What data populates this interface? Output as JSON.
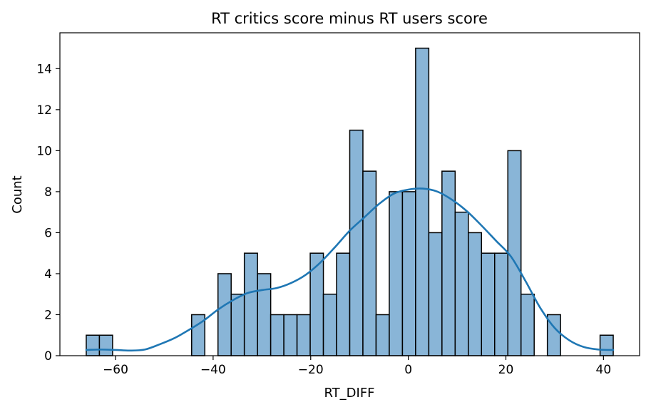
{
  "chart_data": {
    "type": "bar",
    "title": "RT critics score minus RT users score",
    "xlabel": "RT_DIFF",
    "ylabel": "Count",
    "xlim": [
      -71.4,
      47.4
    ],
    "ylim": [
      0,
      15.75
    ],
    "x_ticks": [
      -60,
      -40,
      -20,
      0,
      20,
      40
    ],
    "y_ticks": [
      0,
      2,
      4,
      6,
      8,
      10,
      12,
      14
    ],
    "x_tick_labels": [
      "−60",
      "−40",
      "−20",
      "0",
      "20",
      "40"
    ],
    "y_tick_labels": [
      "0",
      "2",
      "4",
      "6",
      "8",
      "10",
      "12",
      "14"
    ],
    "grid": false,
    "legend": "none",
    "bin_width": 2.7,
    "bin_start": -66,
    "bins": [
      {
        "x0": -66.0,
        "x1": -63.3,
        "count": 1
      },
      {
        "x0": -63.3,
        "x1": -60.6,
        "count": 1
      },
      {
        "x0": -44.4,
        "x1": -41.7,
        "count": 2
      },
      {
        "x0": -39.0,
        "x1": -36.3,
        "count": 4
      },
      {
        "x0": -36.3,
        "x1": -33.6,
        "count": 3
      },
      {
        "x0": -33.6,
        "x1": -30.9,
        "count": 5
      },
      {
        "x0": -30.9,
        "x1": -28.2,
        "count": 4
      },
      {
        "x0": -28.2,
        "x1": -25.5,
        "count": 2
      },
      {
        "x0": -25.5,
        "x1": -22.8,
        "count": 2
      },
      {
        "x0": -22.8,
        "x1": -20.1,
        "count": 2
      },
      {
        "x0": -20.1,
        "x1": -17.4,
        "count": 5
      },
      {
        "x0": -17.4,
        "x1": -14.7,
        "count": 3
      },
      {
        "x0": -14.7,
        "x1": -12.0,
        "count": 5
      },
      {
        "x0": -12.0,
        "x1": -9.3,
        "count": 11
      },
      {
        "x0": -9.3,
        "x1": -6.6,
        "count": 9
      },
      {
        "x0": -6.6,
        "x1": -3.9,
        "count": 2
      },
      {
        "x0": -3.9,
        "x1": -1.2,
        "count": 8
      },
      {
        "x0": -1.2,
        "x1": 1.5,
        "count": 8
      },
      {
        "x0": 1.5,
        "x1": 4.2,
        "count": 15
      },
      {
        "x0": 4.2,
        "x1": 6.9,
        "count": 6
      },
      {
        "x0": 6.9,
        "x1": 9.6,
        "count": 9
      },
      {
        "x0": 9.6,
        "x1": 12.3,
        "count": 7
      },
      {
        "x0": 12.3,
        "x1": 15.0,
        "count": 6
      },
      {
        "x0": 15.0,
        "x1": 17.7,
        "count": 5
      },
      {
        "x0": 17.7,
        "x1": 20.4,
        "count": 5
      },
      {
        "x0": 20.4,
        "x1": 23.1,
        "count": 10
      },
      {
        "x0": 23.1,
        "x1": 25.8,
        "count": 3
      },
      {
        "x0": 28.5,
        "x1": 31.2,
        "count": 2
      },
      {
        "x0": 39.3,
        "x1": 42.0,
        "count": 1
      }
    ],
    "kde": {
      "x": [
        -66,
        -63,
        -60,
        -57,
        -54,
        -51,
        -48,
        -45,
        -42,
        -39,
        -36,
        -33,
        -30,
        -27,
        -24,
        -21,
        -18,
        -15,
        -12,
        -9,
        -6,
        -3,
        0,
        3,
        6,
        9,
        12,
        15,
        18,
        21,
        24,
        27,
        30,
        33,
        36,
        39,
        42
      ],
      "y": [
        0.28,
        0.3,
        0.28,
        0.25,
        0.3,
        0.55,
        0.85,
        1.25,
        1.7,
        2.25,
        2.7,
        3.05,
        3.2,
        3.3,
        3.55,
        3.95,
        4.55,
        5.3,
        6.1,
        6.75,
        7.4,
        7.9,
        8.1,
        8.15,
        8.0,
        7.6,
        7.05,
        6.35,
        5.6,
        4.85,
        3.65,
        2.35,
        1.35,
        0.75,
        0.42,
        0.3,
        0.28
      ]
    },
    "colors": {
      "bar_fill": "#89b5d7",
      "bar_edge": "#000000",
      "kde_line": "#1f77b4"
    }
  }
}
